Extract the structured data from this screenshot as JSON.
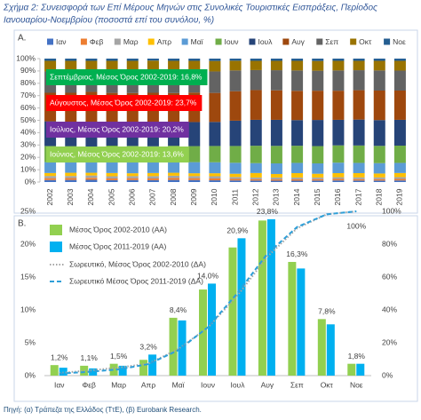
{
  "title": [
    "Σχήμα 2: Συνεισφορά των Επί Μέρους Μηνών στις Συνολικές Τουριστικές Εισπράξεις, Περίοδος",
    "Ιανουαρίου-Νοεμβρίου (ποσοστά επί του συνόλου, %)"
  ],
  "chart_data": [
    {
      "type": "bar",
      "stacked": true,
      "label": "A.",
      "categories": [
        "2002",
        "2003",
        "2004",
        "2005",
        "2006",
        "2007",
        "2008",
        "2009",
        "2010",
        "2011",
        "2012",
        "2013",
        "2014",
        "2015",
        "2016",
        "2017",
        "2018",
        "2019"
      ],
      "ylim": [
        0,
        100
      ],
      "yticks": [
        {
          "value": 0,
          "label": "0%"
        },
        {
          "value": 10,
          "label": "10%"
        },
        {
          "value": 20,
          "label": "20%"
        },
        {
          "value": 30,
          "label": "30%"
        },
        {
          "value": 40,
          "label": "40%"
        },
        {
          "value": 50,
          "label": "50%"
        },
        {
          "value": 60,
          "label": "60%"
        },
        {
          "value": 70,
          "label": "70%"
        },
        {
          "value": 80,
          "label": "80%"
        },
        {
          "value": 90,
          "label": "90%"
        },
        {
          "value": 100,
          "label": "100%"
        }
      ],
      "series": [
        {
          "name": "Ιαν",
          "color": "#4472c4",
          "values": [
            1.6,
            1.7,
            1.8,
            1.5,
            1.6,
            1.5,
            1.7,
            1.6,
            1.4,
            1.3,
            1.2,
            1.1,
            1.1,
            1.2,
            1.3,
            1.2,
            1.2,
            1.3
          ]
        },
        {
          "name": "Φεβ",
          "color": "#ed7d31",
          "values": [
            1.5,
            1.5,
            1.6,
            1.4,
            1.5,
            1.4,
            1.6,
            1.5,
            1.5,
            1.2,
            1.1,
            1.0,
            1.1,
            1.1,
            1.2,
            1.1,
            1.1,
            1.2
          ]
        },
        {
          "name": "Μαρ",
          "color": "#a5a5a5",
          "values": [
            1.8,
            1.7,
            1.9,
            1.8,
            1.7,
            1.9,
            1.8,
            1.7,
            1.8,
            1.6,
            1.4,
            1.6,
            1.5,
            1.4,
            1.4,
            1.5,
            1.5,
            1.5
          ]
        },
        {
          "name": "Απρ",
          "color": "#ffc000",
          "values": [
            2.4,
            2.6,
            2.2,
            2.6,
            2.3,
            2.5,
            2.4,
            2.3,
            2.4,
            2.6,
            3.6,
            2.8,
            3.5,
            3.0,
            3.3,
            3.4,
            3.1,
            3.3
          ]
        },
        {
          "name": "Μαϊ",
          "color": "#5b9bd5",
          "values": [
            8.8,
            8.6,
            8.5,
            9.0,
            8.9,
            8.7,
            8.8,
            9.0,
            8.9,
            8.9,
            8.0,
            8.6,
            8.3,
            8.4,
            8.5,
            8.3,
            8.4,
            8.2
          ]
        },
        {
          "name": "Ιουν",
          "color": "#70ad47",
          "values": [
            13.1,
            13.0,
            12.8,
            13.2,
            13.3,
            13.0,
            13.1,
            13.0,
            13.2,
            13.6,
            14.1,
            14.2,
            13.9,
            14.0,
            14.0,
            14.1,
            14.0,
            14.0
          ]
        },
        {
          "name": "Ιουλ",
          "color": "#264478",
          "values": [
            20.0,
            19.4,
            19.8,
            19.2,
            19.6,
            19.7,
            19.3,
            19.5,
            19.5,
            20.5,
            21.0,
            21.1,
            20.8,
            21.2,
            20.7,
            21.0,
            20.9,
            20.9
          ]
        },
        {
          "name": "Αυγ",
          "color": "#9e480e",
          "values": [
            23.1,
            23.8,
            24.4,
            23.5,
            23.2,
            23.6,
            23.4,
            23.9,
            23.5,
            23.9,
            24.1,
            23.9,
            23.7,
            23.7,
            23.6,
            23.8,
            23.9,
            23.7
          ]
        },
        {
          "name": "Σεπ",
          "color": "#636363",
          "values": [
            17.3,
            17.2,
            16.9,
            17.5,
            17.6,
            17.4,
            17.5,
            17.2,
            17.4,
            16.8,
            16.2,
            16.3,
            16.5,
            16.2,
            16.4,
            16.2,
            16.3,
            16.2
          ]
        },
        {
          "name": "Οκτ",
          "color": "#997300",
          "values": [
            8.6,
            8.7,
            8.3,
            8.5,
            8.5,
            8.7,
            8.6,
            8.5,
            8.5,
            7.9,
            7.5,
            7.6,
            7.8,
            7.9,
            7.8,
            7.6,
            7.8,
            7.9
          ]
        },
        {
          "name": "Νοε",
          "color": "#255e91",
          "values": [
            1.8,
            1.8,
            1.8,
            1.8,
            1.8,
            1.6,
            1.8,
            1.8,
            1.9,
            1.7,
            1.8,
            1.8,
            1.8,
            1.9,
            1.8,
            1.8,
            1.8,
            1.8
          ]
        }
      ],
      "annotations": [
        {
          "text": "Σεπτέμβριος, Μέσος Όρος 2002-2019: 16,8%",
          "color": "#00b050"
        },
        {
          "text": "Αύγουστος, Μέσος Όρος 2002-2019: 23,7%",
          "color": "#ff0000"
        },
        {
          "text": "Ιούλιος, Μέσος Όρος 2002-2019: 20,2%",
          "color": "#7030a0"
        },
        {
          "text": "Ιούνιος, Μέσος Όρος 2002-2019: 13,6%",
          "color": "#92d050"
        }
      ]
    },
    {
      "type": "bar",
      "label": "B.",
      "categories": [
        "Ιαν",
        "Φεβ",
        "Μαρ",
        "Απρ",
        "Μαϊ",
        "Ιουν",
        "Ιουλ",
        "Αυγ",
        "Σεπ",
        "Οκτ",
        "Νοε"
      ],
      "ylim": [
        0,
        25
      ],
      "yticks": [
        {
          "value": 0,
          "label": "0%"
        },
        {
          "value": 5,
          "label": "5%"
        },
        {
          "value": 10,
          "label": "10%"
        },
        {
          "value": 15,
          "label": "15%"
        },
        {
          "value": 20,
          "label": "20%"
        },
        {
          "value": 25,
          "label": "25%"
        }
      ],
      "y2lim": [
        0,
        100
      ],
      "y2ticks": [
        {
          "value": 0,
          "label": "0%"
        },
        {
          "value": 20,
          "label": "20%"
        },
        {
          "value": 40,
          "label": "40%"
        },
        {
          "value": 60,
          "label": "60%"
        },
        {
          "value": 80,
          "label": "80%"
        },
        {
          "value": 100,
          "label": "100%"
        }
      ],
      "series": [
        {
          "name": "Μέσος Όρος 2002-2010 (ΑΑ)",
          "color": "#92d050",
          "values": [
            1.6,
            1.5,
            1.8,
            2.4,
            8.8,
            13.1,
            19.5,
            23.6,
            17.3,
            8.6,
            1.8
          ]
        },
        {
          "name": "Μέσος Όρος 2011-2019 (ΑΑ)",
          "color": "#00b0f0",
          "values": [
            1.2,
            1.1,
            1.5,
            3.2,
            8.4,
            14.0,
            20.9,
            23.8,
            16.3,
            7.8,
            1.8
          ],
          "value_labels": [
            "1,2%",
            "1,1%",
            "1,5%",
            "3,2%",
            "8,4%",
            "14,0%",
            "20,9%",
            "23,8%",
            "16,3%",
            "7,8%",
            "1,8%"
          ]
        },
        {
          "name": "Σωρευτικό, Μέσος Όρος 2002-2010 (ΔΑ)",
          "type": "line",
          "axis": "y2",
          "style": "dotted",
          "color": "#a5a5a5",
          "values": [
            1.6,
            3.1,
            4.9,
            7.3,
            16.1,
            29.2,
            48.7,
            72.3,
            89.6,
            98.2,
            100
          ]
        },
        {
          "name": "Σωρευτικό Μέσος Όρος 2011-2019 (ΔΑ)",
          "type": "line",
          "axis": "y2",
          "style": "dashed",
          "color": "#2e9fd8",
          "values": [
            1.2,
            2.3,
            3.8,
            7.0,
            15.4,
            29.4,
            50.3,
            74.1,
            90.4,
            98.2,
            100
          ],
          "value_labels": [
            null,
            null,
            null,
            null,
            null,
            null,
            null,
            null,
            null,
            null,
            "100%"
          ]
        }
      ]
    }
  ],
  "source": "Πηγή: (α) Τράπεζα της Ελλάδος (ΤτΕ), (β) Eurobank Research."
}
